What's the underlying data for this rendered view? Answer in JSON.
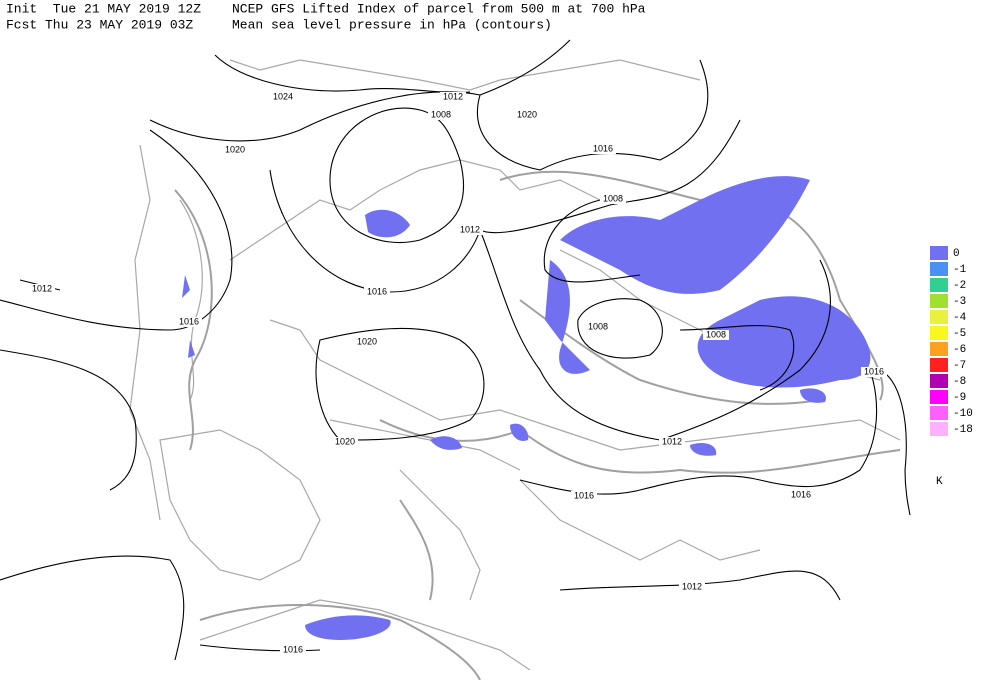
{
  "header": {
    "init": "Init  Tue 21 MAY 2019 12Z",
    "title": "NCEP GFS Lifted Index of parcel from 500 m at 700 hPa",
    "fcst": "Fcst Thu 23 MAY 2019 03Z",
    "subtitle": "Mean sea level pressure in hPa (contours)"
  },
  "contour_labels": [
    "1024",
    "1012",
    "1020",
    "1008",
    "1020",
    "1016",
    "1008",
    "1012",
    "1012",
    "1016",
    "1016",
    "1020",
    "1008",
    "1008",
    "1016",
    "1020",
    "1012",
    "1016",
    "1016",
    "1012",
    "1016"
  ],
  "legend": {
    "entries": [
      {
        "label": "0",
        "color": "#7070f0"
      },
      {
        "label": "-1",
        "color": "#4a90f5"
      },
      {
        "label": "-2",
        "color": "#30d090"
      },
      {
        "label": "-3",
        "color": "#a0e030"
      },
      {
        "label": "-4",
        "color": "#e8f040"
      },
      {
        "label": "-5",
        "color": "#f8f820"
      },
      {
        "label": "-6",
        "color": "#ffa020"
      },
      {
        "label": "-7",
        "color": "#ff2020"
      },
      {
        "label": "-8",
        "color": "#b000b0"
      },
      {
        "label": "-9",
        "color": "#ff00ff"
      },
      {
        "label": "-10",
        "color": "#ff60ff"
      },
      {
        "label": "-18",
        "color": "#ffb0ff"
      }
    ],
    "unit": "K"
  }
}
